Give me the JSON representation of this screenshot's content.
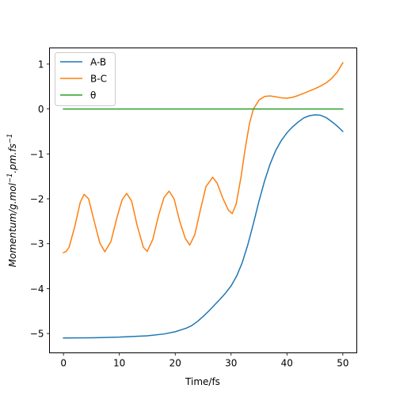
{
  "chart_data": {
    "type": "line",
    "xlabel": "Time/fs",
    "ylabel_parts": {
      "base": "Momentum/g.mol",
      "sup1": "−1",
      "mid": ".pm.fs",
      "sup2": "−1"
    },
    "xlim": [
      -2.5,
      52.5
    ],
    "ylim": [
      -5.43,
      1.36
    ],
    "xticks": [
      0,
      10,
      20,
      30,
      40,
      50
    ],
    "xtick_labels": [
      "0",
      "10",
      "20",
      "30",
      "40",
      "50"
    ],
    "yticks": [
      -5,
      -4,
      -3,
      -2,
      -1,
      0,
      1
    ],
    "ytick_labels": [
      "−5",
      "−4",
      "−3",
      "−2",
      "−1",
      "0",
      "1"
    ],
    "grid": false,
    "legend_position": "upper-left",
    "series": [
      {
        "name": "A-B",
        "color": "#1f77b4",
        "points": [
          [
            0,
            -5.1
          ],
          [
            5,
            -5.095
          ],
          [
            10,
            -5.08
          ],
          [
            15,
            -5.05
          ],
          [
            18,
            -5.01
          ],
          [
            20,
            -4.96
          ],
          [
            22,
            -4.88
          ],
          [
            23,
            -4.82
          ],
          [
            24,
            -4.73
          ],
          [
            25,
            -4.62
          ],
          [
            26,
            -4.5
          ],
          [
            27,
            -4.37
          ],
          [
            28,
            -4.24
          ],
          [
            29,
            -4.1
          ],
          [
            30,
            -3.94
          ],
          [
            31,
            -3.72
          ],
          [
            32,
            -3.42
          ],
          [
            33,
            -3.02
          ],
          [
            34,
            -2.55
          ],
          [
            35,
            -2.05
          ],
          [
            36,
            -1.6
          ],
          [
            37,
            -1.22
          ],
          [
            38,
            -0.92
          ],
          [
            39,
            -0.7
          ],
          [
            40,
            -0.53
          ],
          [
            41,
            -0.4
          ],
          [
            42,
            -0.29
          ],
          [
            43,
            -0.2
          ],
          [
            44,
            -0.15
          ],
          [
            45,
            -0.13
          ],
          [
            46,
            -0.14
          ],
          [
            47,
            -0.19
          ],
          [
            48,
            -0.28
          ],
          [
            49,
            -0.38
          ],
          [
            50,
            -0.5
          ]
        ]
      },
      {
        "name": "B-C",
        "color": "#ff7f0e",
        "points": [
          [
            0,
            -3.2
          ],
          [
            0.5,
            -3.17
          ],
          [
            1,
            -3.08
          ],
          [
            2,
            -2.63
          ],
          [
            3,
            -2.08
          ],
          [
            3.7,
            -1.9
          ],
          [
            4.5,
            -2.0
          ],
          [
            5.5,
            -2.5
          ],
          [
            6.5,
            -2.98
          ],
          [
            7.4,
            -3.18
          ],
          [
            8.5,
            -2.95
          ],
          [
            9.5,
            -2.45
          ],
          [
            10.5,
            -2.02
          ],
          [
            11.3,
            -1.88
          ],
          [
            12.2,
            -2.05
          ],
          [
            13.2,
            -2.6
          ],
          [
            14.3,
            -3.08
          ],
          [
            15,
            -3.17
          ],
          [
            16,
            -2.9
          ],
          [
            17,
            -2.38
          ],
          [
            18,
            -1.97
          ],
          [
            18.9,
            -1.83
          ],
          [
            19.8,
            -2.0
          ],
          [
            20.8,
            -2.5
          ],
          [
            21.8,
            -2.88
          ],
          [
            22.6,
            -3.03
          ],
          [
            23.5,
            -2.8
          ],
          [
            24.5,
            -2.25
          ],
          [
            25.5,
            -1.73
          ],
          [
            26.7,
            -1.52
          ],
          [
            27.5,
            -1.65
          ],
          [
            28.5,
            -1.98
          ],
          [
            29.5,
            -2.25
          ],
          [
            30.2,
            -2.33
          ],
          [
            30.9,
            -2.12
          ],
          [
            31.8,
            -1.5
          ],
          [
            32.5,
            -0.9
          ],
          [
            33.3,
            -0.32
          ],
          [
            34,
            0.0
          ],
          [
            35,
            0.2
          ],
          [
            36,
            0.28
          ],
          [
            37,
            0.29
          ],
          [
            38,
            0.27
          ],
          [
            39,
            0.25
          ],
          [
            40,
            0.24
          ],
          [
            41,
            0.26
          ],
          [
            42,
            0.3
          ],
          [
            43,
            0.35
          ],
          [
            44,
            0.4
          ],
          [
            45,
            0.45
          ],
          [
            46,
            0.51
          ],
          [
            47,
            0.58
          ],
          [
            48,
            0.68
          ],
          [
            49,
            0.82
          ],
          [
            50,
            1.03
          ]
        ]
      },
      {
        "name": "θ",
        "color": "#2ca02c",
        "points": [
          [
            0,
            0
          ],
          [
            50,
            0
          ]
        ]
      }
    ]
  }
}
